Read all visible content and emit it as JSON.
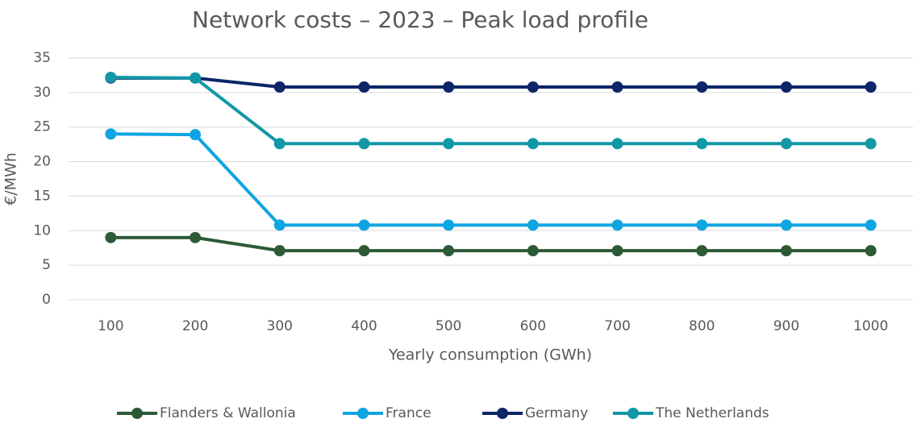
{
  "chart_data": {
    "type": "line",
    "title": "Network costs – 2023 – Peak load profile",
    "x_label": "Yearly consumption (GWh)",
    "y_label": "€/MWh",
    "categories": [
      "100",
      "200",
      "300",
      "400",
      "500",
      "600",
      "700",
      "800",
      "900",
      "1000"
    ],
    "series": [
      {
        "name": "Flanders & Wallonia",
        "color": "#2c5a36",
        "values": [
          9.0,
          9.0,
          7.1,
          7.1,
          7.1,
          7.1,
          7.1,
          7.1,
          7.1,
          7.1
        ]
      },
      {
        "name": "France",
        "color": "#0fa5e3",
        "values": [
          24.0,
          23.9,
          10.8,
          10.8,
          10.8,
          10.8,
          10.8,
          10.8,
          10.8,
          10.8
        ]
      },
      {
        "name": "Germany",
        "color": "#0c2668",
        "values": [
          32.1,
          32.1,
          30.8,
          30.8,
          30.8,
          30.8,
          30.8,
          30.8,
          30.8,
          30.8
        ]
      },
      {
        "name": "The Netherlands",
        "color": "#1198a6",
        "values": [
          32.2,
          32.1,
          22.6,
          22.6,
          22.6,
          22.6,
          22.6,
          22.6,
          22.6,
          22.6
        ]
      }
    ],
    "ylim": [
      0,
      35
    ],
    "yticks": [
      0,
      5,
      10,
      15,
      20,
      25,
      30,
      35
    ],
    "grid": true,
    "legend": "bottom"
  }
}
